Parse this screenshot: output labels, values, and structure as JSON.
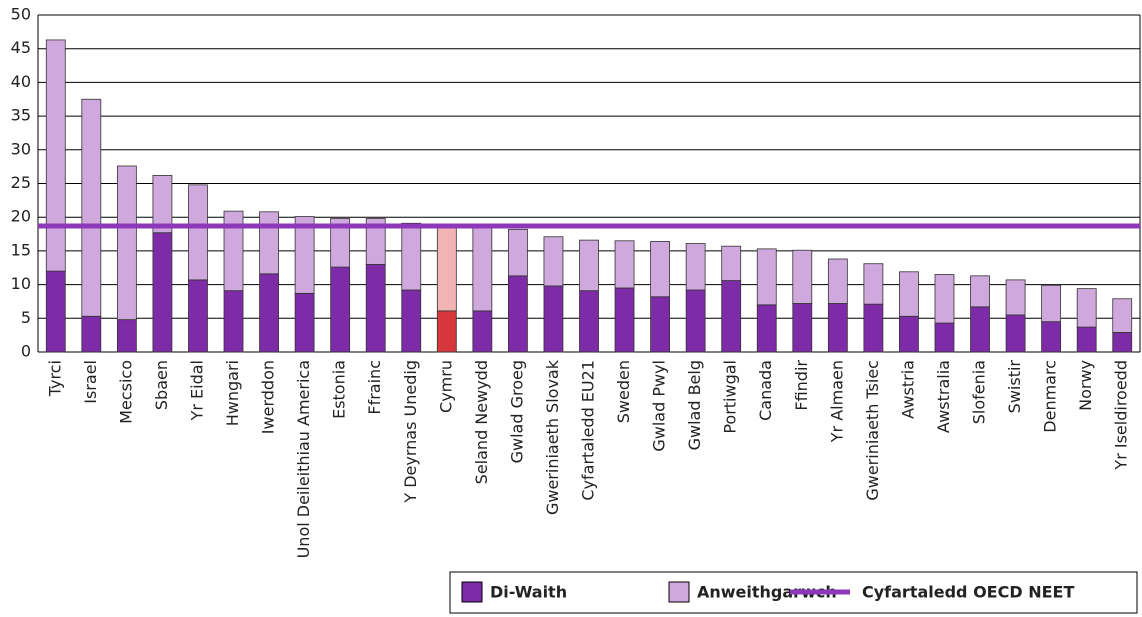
{
  "chart_data": {
    "type": "stacked_bar",
    "categories": [
      "Tyrci",
      "Israel",
      "Mecsico",
      "Sbaen",
      "Yr Eidal",
      "Hwngari",
      "Iwerddon",
      "Unol Deileithiau America",
      "Estonia",
      "Ffrainc",
      "Y Deyrnas Unedig",
      "Cymru",
      "Seland Newydd",
      "Gwlad Groeg",
      "Gweriniaeth Slovak",
      "Cyfartaledd EU21",
      "Sweden",
      "Gwlad Pwyl",
      "Gwlad Belg",
      "Portiwgal",
      "Canada",
      "Ffindir",
      "Yr Almaen",
      "Gweriniaeth Tsiec",
      "Awstria",
      "Awstralia",
      "Slofenia",
      "Swistir",
      "Denmarc",
      "Norwy",
      "Yr Iseldiroedd"
    ],
    "series": [
      {
        "name": "Di-Waith",
        "color": "#7e2ba8",
        "highlight_color": "#d6373c",
        "values": [
          12.0,
          5.3,
          4.8,
          17.7,
          10.7,
          9.1,
          11.6,
          8.7,
          12.6,
          13.0,
          9.2,
          6.1,
          6.1,
          11.3,
          9.8,
          9.1,
          9.5,
          8.2,
          9.2,
          10.6,
          7.0,
          7.2,
          7.2,
          7.1,
          5.3,
          4.3,
          6.7,
          5.5,
          4.5,
          3.7,
          2.9
        ]
      },
      {
        "name": "Anweithgarwch",
        "color": "#cfa9dd",
        "highlight_color": "#f2b3b7",
        "values": [
          34.3,
          32.2,
          22.8,
          8.5,
          14.1,
          11.8,
          9.2,
          11.4,
          7.2,
          6.8,
          9.9,
          12.5,
          12.4,
          6.9,
          7.3,
          7.5,
          7.0,
          8.2,
          6.9,
          5.1,
          8.3,
          7.9,
          6.6,
          6.0,
          6.6,
          7.2,
          4.6,
          5.2,
          5.4,
          5.7,
          5.0
        ]
      }
    ],
    "highlight_index": 11,
    "reference_line": {
      "name": "Cyfartaledd OECD NEET",
      "value": 18.7,
      "color": "#8d38b8"
    },
    "ylim": [
      0,
      50
    ],
    "yticks": [
      0,
      5,
      10,
      15,
      20,
      25,
      30,
      35,
      40,
      45,
      50
    ],
    "grid": true
  }
}
